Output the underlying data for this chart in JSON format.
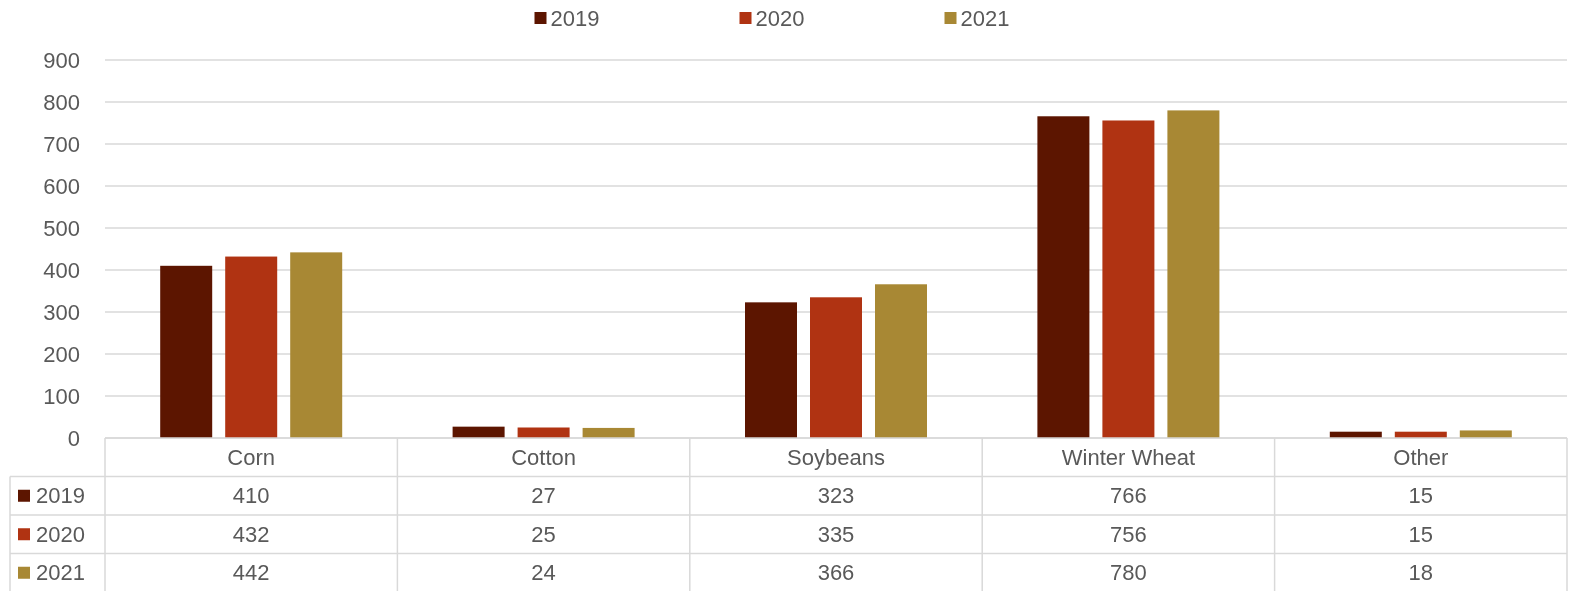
{
  "chart_data": {
    "type": "bar",
    "categories": [
      "Corn",
      "Cotton",
      "Soybeans",
      "Winter Wheat",
      "Other"
    ],
    "series": [
      {
        "name": "2019",
        "color": "#5c1500",
        "values": [
          410,
          27,
          323,
          766,
          15
        ]
      },
      {
        "name": "2020",
        "color": "#b03312",
        "values": [
          432,
          25,
          335,
          756,
          15
        ]
      },
      {
        "name": "2021",
        "color": "#a88834",
        "values": [
          442,
          24,
          366,
          780,
          18
        ]
      }
    ],
    "ylim": [
      0,
      900
    ],
    "yticks": [
      0,
      100,
      200,
      300,
      400,
      500,
      600,
      700,
      800,
      900
    ],
    "grid": "y",
    "legend": "top",
    "data_labels": true
  }
}
